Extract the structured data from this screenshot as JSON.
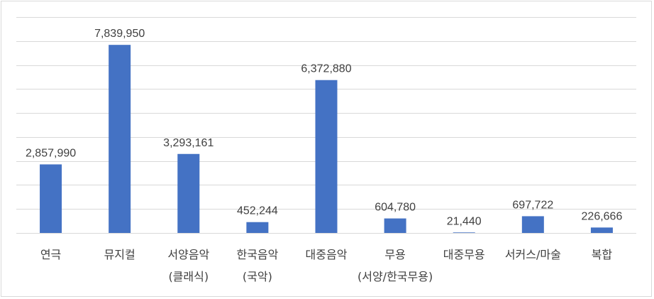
{
  "chart_data": {
    "type": "bar",
    "categories": [
      [
        "연극"
      ],
      [
        "뮤지컬"
      ],
      [
        "서양음악",
        "(클래식)"
      ],
      [
        "한국음악",
        "(국악)"
      ],
      [
        "대중음악"
      ],
      [
        "무용",
        "(서양/한국무용)"
      ],
      [
        "대중무용"
      ],
      [
        "서커스/마술"
      ],
      [
        "복합"
      ]
    ],
    "values": [
      2857990,
      7839950,
      3293161,
      452244,
      6372880,
      604780,
      21440,
      697722,
      226666
    ],
    "value_labels": [
      "2,857,990",
      "7,839,950",
      "3,293,161",
      "452,244",
      "6,372,880",
      "604,780",
      "21,440",
      "697,722",
      "226,666"
    ],
    "ylim": [
      0,
      9000000
    ],
    "grid": true,
    "bar_color": "#4472c4",
    "grid_color": "#d9d9d9"
  }
}
